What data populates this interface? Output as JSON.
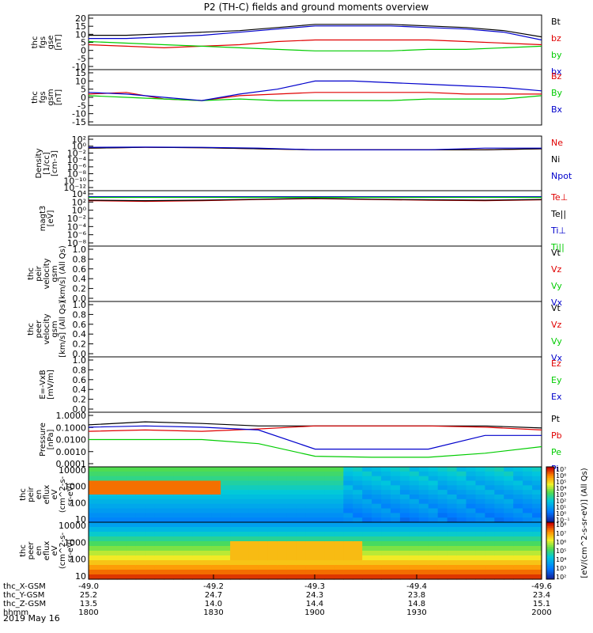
{
  "title": "P2 (TH-C) fields and ground moments overview",
  "date_label": "2019 May 16",
  "colors": {
    "black": "#000000",
    "red": "#e00000",
    "green": "#00cc00",
    "blue": "#0000cc"
  },
  "bottom_axis": {
    "row_labels": [
      "thc_X-GSM",
      "thc_Y-GSM",
      "thc_Z-GSM",
      "hhmm"
    ],
    "ticks": [
      [
        "-49.0",
        "-49.2",
        "-49.3",
        "-49.4",
        "-49.6"
      ],
      [
        "25.2",
        "24.7",
        "24.3",
        "23.8",
        "23.4"
      ],
      [
        "13.5",
        "14.0",
        "14.4",
        "14.8",
        "15.1"
      ],
      [
        "1800",
        "1830",
        "1900",
        "1930",
        "2000"
      ]
    ]
  },
  "colorbar": {
    "label": "[eV/(cm^2-s-sr-eV)] (All Qs)",
    "top_ticks": [
      "10^7",
      "10^6",
      "10^5",
      "10^4",
      "10^3",
      "10^2",
      "10^1",
      "10^0",
      "10^-1"
    ],
    "bottom_ticks": [
      "10^8",
      "10^7",
      "10^6",
      "10^5",
      "10^4",
      "10^3",
      "10^2"
    ]
  },
  "panels": [
    {
      "id": "fgs",
      "ylabel": [
        "thc",
        "fgs",
        "gse",
        "[nT]"
      ],
      "ticks": [
        "20",
        "15",
        "10",
        "5",
        "0",
        "-5",
        "-10"
      ],
      "legend": [
        {
          "text": "Bt",
          "color": "#000000"
        },
        {
          "text": "bz",
          "color": "#e00000"
        },
        {
          "text": "by",
          "color": "#00cc00"
        },
        {
          "text": "bx",
          "color": "#0000cc"
        }
      ]
    },
    {
      "id": "fgs-gsm",
      "ylabel": [
        "thc",
        "fgs",
        "gsm",
        "[nT]"
      ],
      "ticks": [
        "15",
        "10",
        "5",
        "0",
        "-5",
        "-10",
        "-15"
      ],
      "legend": [
        {
          "text": "Bz",
          "color": "#e00000"
        },
        {
          "text": "By",
          "color": "#00cc00"
        },
        {
          "text": "Bx",
          "color": "#0000cc"
        }
      ]
    },
    {
      "id": "density",
      "ylabel": [
        "Density",
        "[1/cc]",
        "[cm-3]"
      ],
      "ticks": [
        "10^2",
        "10^0",
        "10^-2",
        "10^-4",
        "10^-6",
        "10^-8",
        "10^-10",
        "10^-12"
      ],
      "legend": [
        {
          "text": "Ne",
          "color": "#e00000"
        },
        {
          "text": "Ni",
          "color": "#000000"
        },
        {
          "text": "Npot",
          "color": "#0000cc"
        }
      ]
    },
    {
      "id": "temp",
      "ylabel": [
        "magt3",
        "[eV]"
      ],
      "ticks": [
        "10^4",
        "10^2",
        "10^0",
        "10^-2",
        "10^-4",
        "10^-6",
        "10^-8"
      ],
      "legend": [
        {
          "text": "Te⊥",
          "color": "#e00000"
        },
        {
          "text": "Te||",
          "color": "#000000"
        },
        {
          "text": "Ti⊥",
          "color": "#0000cc"
        },
        {
          "text": "Ti||",
          "color": "#00cc00"
        }
      ]
    },
    {
      "id": "peir",
      "ylabel": [
        "thc",
        "peir",
        "velocity",
        "gsm",
        "[km/s] (All Qs)"
      ],
      "ticks": [
        "1.0",
        "0.8",
        "0.6",
        "0.4",
        "0.2",
        "0.0"
      ],
      "legend": [
        {
          "text": "Vt",
          "color": "#000000"
        },
        {
          "text": "Vz",
          "color": "#e00000"
        },
        {
          "text": "Vy",
          "color": "#00cc00"
        },
        {
          "text": "Vx",
          "color": "#0000cc"
        }
      ]
    },
    {
      "id": "peer",
      "ylabel": [
        "thc",
        "peer",
        "velocity",
        "gsm",
        "[km/s] (All Qs)"
      ],
      "ticks": [
        "1.0",
        "0.8",
        "0.6",
        "0.4",
        "0.2",
        "0.0"
      ],
      "legend": [
        {
          "text": "Vt",
          "color": "#000000"
        },
        {
          "text": "Vz",
          "color": "#e00000"
        },
        {
          "text": "Vy",
          "color": "#00cc00"
        },
        {
          "text": "Vx",
          "color": "#0000cc"
        }
      ]
    },
    {
      "id": "efield",
      "ylabel": [
        "E=-VxB",
        "[mV/m]"
      ],
      "ticks": [
        "1.0",
        "0.8",
        "0.6",
        "0.4",
        "0.2",
        "0.0"
      ],
      "legend": [
        {
          "text": "Ez",
          "color": "#e00000"
        },
        {
          "text": "Ey",
          "color": "#00cc00"
        },
        {
          "text": "Ex",
          "color": "#0000cc"
        }
      ]
    },
    {
      "id": "pressure",
      "ylabel": [
        "Pressure",
        "[nPa]"
      ],
      "ticks": [
        "1.0000",
        "0.1000",
        "0.0100",
        "0.0010",
        "0.0001"
      ],
      "legend": [
        {
          "text": "Pt",
          "color": "#000000"
        },
        {
          "text": "Pb",
          "color": "#e00000"
        },
        {
          "text": "Pe",
          "color": "#00cc00"
        },
        {
          "text": "Pi",
          "color": "#0000cc"
        }
      ]
    },
    {
      "id": "peir-flux",
      "ylabel": [
        "thc",
        "peir",
        "en",
        "eflux",
        "eV",
        "(cm^2-s-",
        "sr-eV)"
      ],
      "ticks": [
        "10000",
        "1000",
        "100",
        "10"
      ],
      "legend": []
    },
    {
      "id": "peer-flux",
      "ylabel": [
        "thc",
        "peer",
        "en",
        "eflux",
        "eV",
        "(cm^2-s-",
        "sr-eV)"
      ],
      "ticks": [
        "10000",
        "1000",
        "100",
        "10"
      ],
      "legend": []
    }
  ],
  "chart_data": {
    "type": "line",
    "x_label": "hhmm",
    "x_ticks": [
      "1800",
      "1830",
      "1900",
      "1930",
      "2000"
    ],
    "series_groups": [
      {
        "panel": "fgs",
        "series": [
          {
            "name": "Bt",
            "color": "#000000",
            "x": [
              1800,
              1810,
              1820,
              1830,
              1840,
              1850,
              1900,
              1910,
              1920,
              1930,
              1940,
              1950,
              2000
            ],
            "values": [
              8,
              8,
              9,
              10,
              11,
              13,
              15,
              15,
              15,
              14,
              13,
              11,
              7
            ]
          },
          {
            "name": "bz",
            "color": "#e00000",
            "x": [
              1800,
              1810,
              1820,
              1830,
              1840,
              1850,
              1900,
              1910,
              1920,
              1930,
              1940,
              1950,
              2000
            ],
            "values": [
              2,
              1,
              0,
              1,
              2,
              4,
              5,
              5,
              5,
              5,
              4,
              3,
              2
            ]
          },
          {
            "name": "by",
            "color": "#00cc00",
            "x": [
              1800,
              1810,
              1820,
              1830,
              1840,
              1850,
              1900,
              1910,
              1920,
              1930,
              1940,
              1950,
              2000
            ],
            "values": [
              4,
              3,
              2,
              1,
              0,
              -1,
              -2,
              -2,
              -2,
              -1,
              -1,
              0,
              1
            ]
          },
          {
            "name": "bx",
            "color": "#0000cc",
            "x": [
              1800,
              1810,
              1820,
              1830,
              1840,
              1850,
              1900,
              1910,
              1920,
              1930,
              1940,
              1950,
              2000
            ],
            "values": [
              6,
              6,
              7,
              8,
              10,
              12,
              14,
              14,
              14,
              13,
              12,
              10,
              5
            ]
          }
        ]
      },
      {
        "panel": "fgs-gsm",
        "series": [
          {
            "name": "Bz",
            "color": "#e00000",
            "x": [
              1800,
              1810,
              1820,
              1830,
              1840,
              1850,
              1900,
              1910,
              1920,
              1930,
              1940,
              1950,
              2000
            ],
            "values": [
              2,
              3,
              -1,
              -2,
              1,
              2,
              3,
              3,
              3,
              3,
              2,
              2,
              2
            ]
          },
          {
            "name": "By",
            "color": "#00cc00",
            "x": [
              1800,
              1810,
              1820,
              1830,
              1840,
              1850,
              1900,
              1910,
              1920,
              1930,
              1940,
              1950,
              2000
            ],
            "values": [
              1,
              0,
              -1,
              -2,
              -1,
              -2,
              -2,
              -2,
              -2,
              -1,
              -1,
              -1,
              1
            ]
          },
          {
            "name": "Bx",
            "color": "#0000cc",
            "x": [
              1800,
              1810,
              1820,
              1830,
              1840,
              1850,
              1900,
              1910,
              1920,
              1930,
              1940,
              1950,
              2000
            ],
            "values": [
              3,
              2,
              0,
              -2,
              2,
              5,
              10,
              10,
              9,
              8,
              7,
              6,
              4
            ]
          }
        ]
      },
      {
        "panel": "density",
        "series": [
          {
            "name": "Ne",
            "color": "#e00000",
            "x": [
              1800,
              1815,
              1830,
              1845,
              1900,
              1915,
              1930,
              1945,
              2000
            ],
            "values": [
              0.3,
              0.5,
              0.4,
              0.2,
              0.1,
              0.1,
              0.1,
              0.1,
              0.2
            ]
          },
          {
            "name": "Ni",
            "color": "#000000",
            "x": [
              1800,
              1815,
              1830,
              1845,
              1900,
              1915,
              1930,
              1945,
              2000
            ],
            "values": [
              0.3,
              0.5,
              0.4,
              0.2,
              0.1,
              0.1,
              0.1,
              0.1,
              0.2
            ]
          },
          {
            "name": "Npot",
            "color": "#0000cc",
            "x": [
              1800,
              1815,
              1830,
              1845,
              1900,
              1915,
              1930,
              1945,
              2000
            ],
            "values": [
              0.5,
              0.6,
              0.5,
              0.3,
              0.1,
              0.1,
              0.1,
              0.3,
              0.3
            ]
          }
        ]
      },
      {
        "panel": "temp",
        "series": [
          {
            "name": "Te⊥",
            "color": "#e00000",
            "x": [
              1800,
              1815,
              1830,
              1845,
              1900,
              1915,
              1930,
              1945,
              2000
            ],
            "values": [
              300,
              200,
              300,
              600,
              1000,
              600,
              400,
              300,
              500
            ]
          },
          {
            "name": "Te||",
            "color": "#000000",
            "x": [
              1800,
              1815,
              1830,
              1845,
              1900,
              1915,
              1930,
              1945,
              2000
            ],
            "values": [
              400,
              300,
              400,
              700,
              1200,
              700,
              500,
              400,
              600
            ]
          },
          {
            "name": "Ti⊥",
            "color": "#0000cc",
            "x": [
              1800,
              1815,
              1830,
              1845,
              1900,
              1915,
              1930,
              1945,
              2000
            ],
            "values": [
              3000,
              3000,
              3000,
              3000,
              3000,
              3000,
              3000,
              3000,
              3000
            ]
          },
          {
            "name": "Ti||",
            "color": "#00cc00",
            "x": [
              1800,
              1815,
              1830,
              1845,
              1900,
              1915,
              1930,
              1945,
              2000
            ],
            "values": [
              2000,
              2000,
              2000,
              2000,
              2000,
              2000,
              2000,
              2000,
              2000
            ]
          }
        ]
      },
      {
        "panel": "pressure",
        "series": [
          {
            "name": "Pt",
            "color": "#000000",
            "x": [
              1800,
              1815,
              1830,
              1845,
              1900,
              1915,
              1930,
              1945,
              2000
            ],
            "values": [
              0.12,
              0.2,
              0.15,
              0.1,
              0.1,
              0.1,
              0.1,
              0.1,
              0.07
            ]
          },
          {
            "name": "Pb",
            "color": "#e00000",
            "x": [
              1800,
              1815,
              1830,
              1845,
              1900,
              1915,
              1930,
              1945,
              2000
            ],
            "values": [
              0.04,
              0.05,
              0.04,
              0.06,
              0.1,
              0.1,
              0.1,
              0.08,
              0.05
            ]
          },
          {
            "name": "Pe",
            "color": "#00cc00",
            "x": [
              1800,
              1815,
              1830,
              1845,
              1900,
              1915,
              1930,
              1945,
              2000
            ],
            "values": [
              0.01,
              0.01,
              0.01,
              0.005,
              0.0006,
              0.0005,
              0.0005,
              0.001,
              0.003
            ]
          },
          {
            "name": "Pi",
            "color": "#0000cc",
            "x": [
              1800,
              1815,
              1830,
              1845,
              1900,
              1915,
              1930,
              1945,
              2000
            ],
            "values": [
              0.08,
              0.1,
              0.08,
              0.05,
              0.002,
              0.002,
              0.002,
              0.02,
              0.02
            ]
          }
        ]
      }
    ]
  }
}
